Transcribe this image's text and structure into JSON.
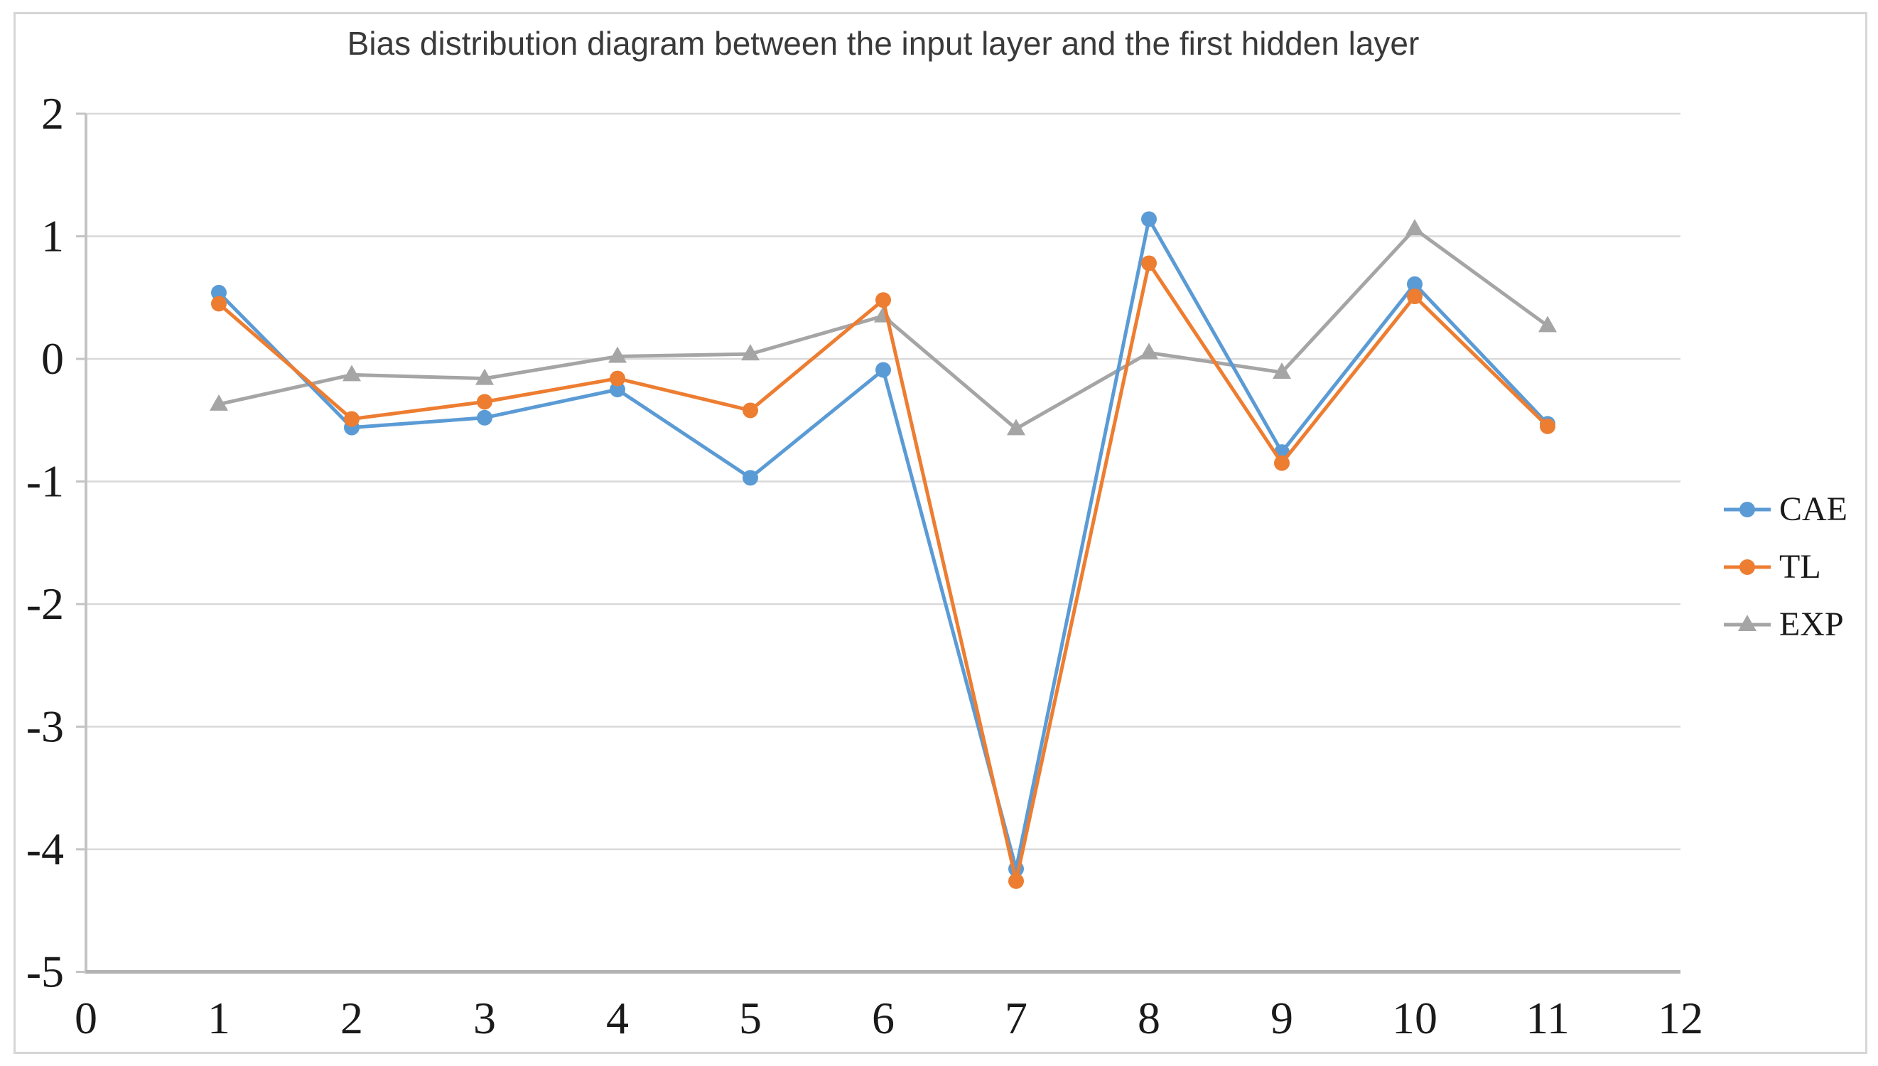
{
  "figure": {
    "title": "Bias distribution diagram between the input layer and the first hidden layer"
  },
  "chart_data": {
    "type": "line",
    "title": "Bias distribution diagram between the input layer and the first hidden layer",
    "xlabel": "",
    "ylabel": "",
    "x": [
      1,
      2,
      3,
      4,
      5,
      6,
      7,
      8,
      9,
      10,
      11
    ],
    "series": [
      {
        "name": "CAE",
        "color": "#5B9BD5",
        "marker": "circle",
        "values": [
          0.54,
          -0.56,
          -0.48,
          -0.25,
          -0.97,
          -0.09,
          -4.16,
          1.14,
          -0.76,
          0.61,
          -0.53
        ]
      },
      {
        "name": "TL",
        "color": "#ED7D31",
        "marker": "circle",
        "values": [
          0.45,
          -0.49,
          -0.35,
          -0.16,
          -0.42,
          0.48,
          -4.26,
          0.78,
          -0.85,
          0.51,
          -0.55
        ]
      },
      {
        "name": "EXP",
        "color": "#A5A5A5",
        "marker": "triangle",
        "values": [
          -0.37,
          -0.13,
          -0.16,
          0.02,
          0.04,
          0.35,
          -0.57,
          0.05,
          -0.11,
          1.06,
          0.27
        ]
      }
    ],
    "xlim": [
      0,
      12
    ],
    "ylim": [
      -5,
      2
    ],
    "x_ticks": [
      0,
      1,
      2,
      3,
      4,
      5,
      6,
      7,
      8,
      9,
      10,
      11,
      12
    ],
    "y_ticks": [
      2,
      1,
      0,
      -1,
      -2,
      -3,
      -4,
      -5
    ],
    "grid": "horizontal",
    "legend_position": "right",
    "colors": {
      "grid": "#D9D9D9",
      "axis_bottom": "#B3B3B3",
      "axis_left": "#C4C4C4",
      "tick_label": "#1a1a1a",
      "title": "#3a3a3a",
      "frame": "#D6D6D6"
    }
  }
}
